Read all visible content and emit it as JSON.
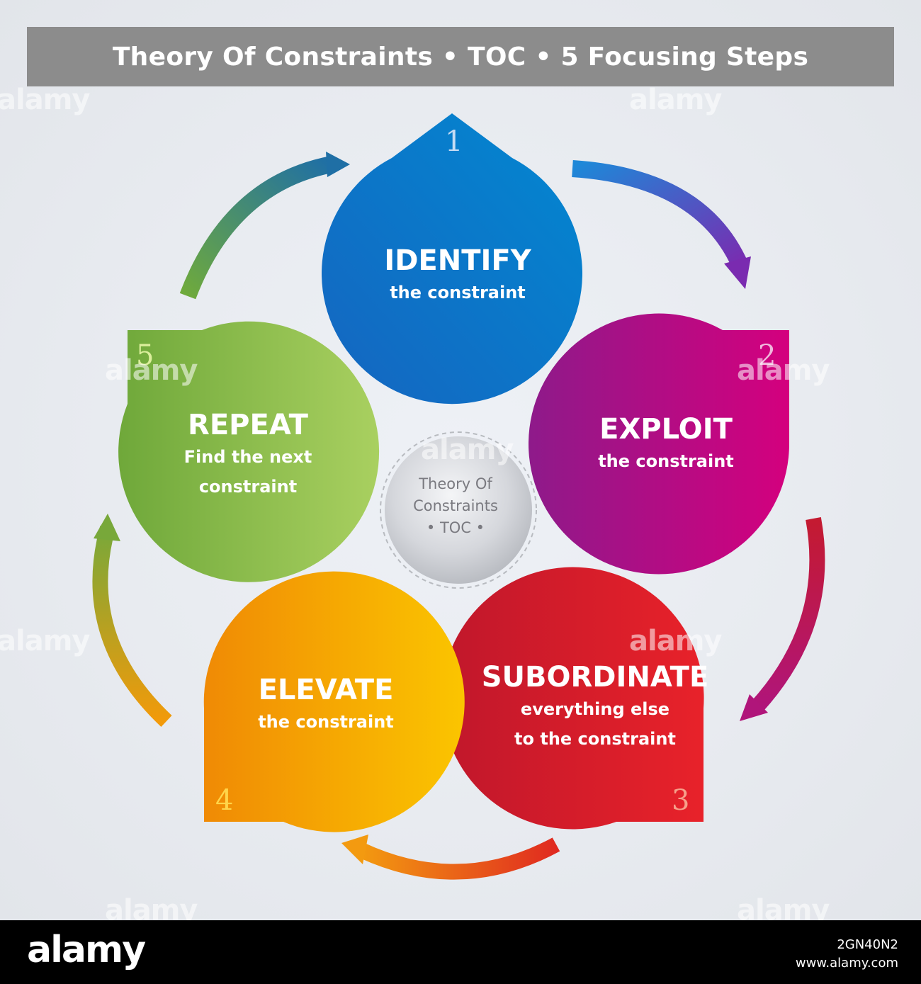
{
  "title": "Theory Of Constraints • TOC • 5 Focusing Steps",
  "center": {
    "line1": "Theory Of",
    "line2": "Constraints",
    "line3": "• TOC •"
  },
  "steps": [
    {
      "number": "1",
      "title": "IDENTIFY",
      "subtitle_line1": "the constraint",
      "subtitle_line2": "",
      "color_start": "#1565c0",
      "color_end": "#0288d1"
    },
    {
      "number": "2",
      "title": "EXPLOIT",
      "subtitle_line1": "the constraint",
      "subtitle_line2": "",
      "color_start": "#8e1a8a",
      "color_end": "#d4007e"
    },
    {
      "number": "3",
      "title": "SUBORDINATE",
      "subtitle_line1": "everything else",
      "subtitle_line2": "to the constraint",
      "color_start": "#c0172b",
      "color_end": "#e8222a"
    },
    {
      "number": "4",
      "title": "ELEVATE",
      "subtitle_line1": "the constraint",
      "subtitle_line2": "",
      "color_start": "#f08a05",
      "color_end": "#fbc500"
    },
    {
      "number": "5",
      "title": "REPEAT",
      "subtitle_line1": "Find the next",
      "subtitle_line2": "constraint",
      "color_start": "#6fa83a",
      "color_end": "#a9d060"
    }
  ],
  "watermark": {
    "text": "alamy",
    "footer_logo": "alamy",
    "image_id": "2GN40N2",
    "site": "www.alamy.com"
  }
}
